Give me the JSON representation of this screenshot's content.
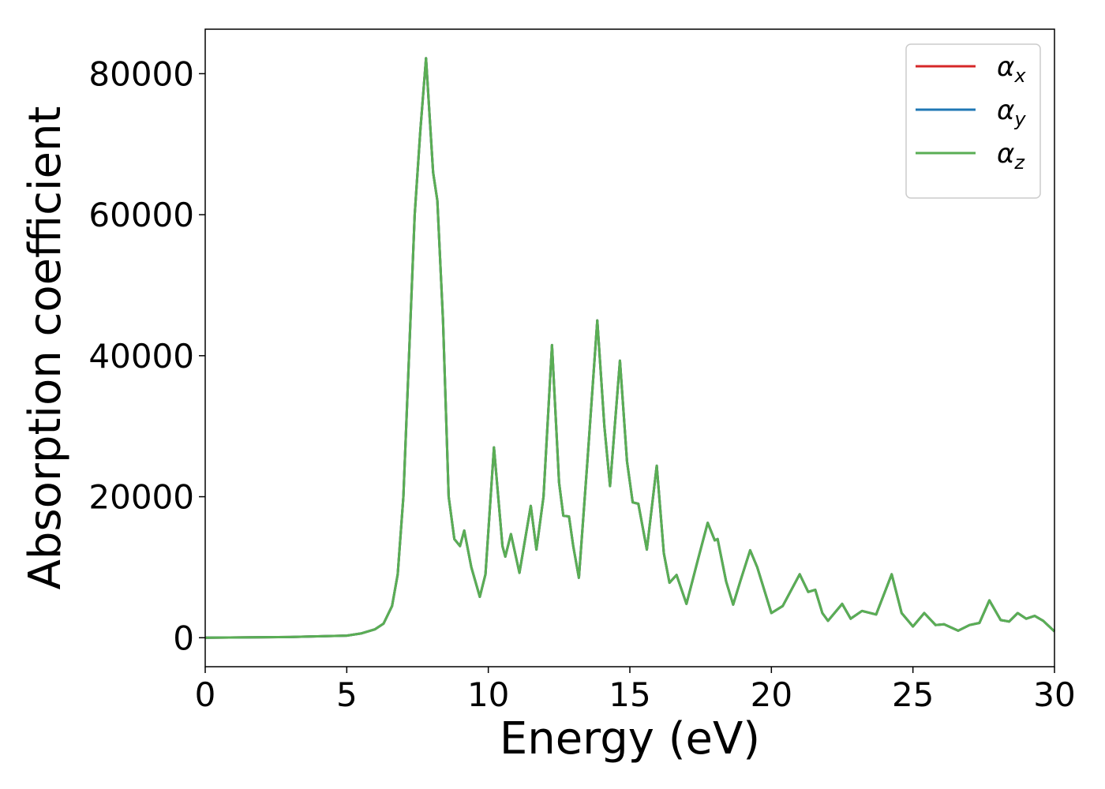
{
  "chart_data": {
    "type": "line",
    "xlabel": "Energy (eV)",
    "ylabel": "Absorption coefficient",
    "xlim": [
      0,
      30
    ],
    "xticks": [
      0,
      5,
      10,
      15,
      20,
      25,
      30
    ],
    "ylim": [
      -4110,
      86310
    ],
    "yticks": [
      0,
      20000,
      40000,
      60000,
      80000
    ],
    "legend": "upper right",
    "x": [
      0,
      3,
      5,
      5.5,
      6,
      6.3,
      6.6,
      6.8,
      7.0,
      7.2,
      7.4,
      7.6,
      7.8,
      8.05,
      8.2,
      8.4,
      8.6,
      8.8,
      9.0,
      9.15,
      9.4,
      9.7,
      9.9,
      10.2,
      10.5,
      10.6,
      10.8,
      11.1,
      11.5,
      11.7,
      11.95,
      12.25,
      12.5,
      12.65,
      12.85,
      13.0,
      13.2,
      13.5,
      13.85,
      14.1,
      14.3,
      14.65,
      14.9,
      15.1,
      15.3,
      15.6,
      15.95,
      16.2,
      16.4,
      16.65,
      17.0,
      17.4,
      17.75,
      18.0,
      18.1,
      18.4,
      18.65,
      18.9,
      19.25,
      19.5,
      20.0,
      20.4,
      21.0,
      21.3,
      21.55,
      21.8,
      22.0,
      22.5,
      22.8,
      23.2,
      23.7,
      24.25,
      24.6,
      25.0,
      25.4,
      25.8,
      26.1,
      26.6,
      27.0,
      27.35,
      27.7,
      28.1,
      28.4,
      28.7,
      29.0,
      29.3,
      29.6,
      30.0
    ],
    "series": [
      {
        "name": "αx",
        "color": "#d62728",
        "values": [
          0,
          100,
          300,
          600,
          1200,
          2000,
          4500,
          9000,
          20000,
          40000,
          60000,
          72000,
          82200,
          66000,
          62000,
          45000,
          20000,
          14000,
          13000,
          15200,
          10000,
          5800,
          9000,
          27000,
          13000,
          11500,
          14700,
          9200,
          18700,
          12500,
          20000,
          41500,
          22000,
          17300,
          17200,
          13000,
          8500,
          25000,
          45000,
          30000,
          21500,
          39300,
          25000,
          19200,
          19000,
          12500,
          24400,
          12000,
          7800,
          8900,
          4800,
          11000,
          16300,
          13800,
          14000,
          8000,
          4700,
          8000,
          12400,
          10000,
          3500,
          4500,
          9000,
          6500,
          6800,
          3500,
          2400,
          4800,
          2700,
          3800,
          3300,
          9000,
          3500,
          1600,
          3500,
          1800,
          1900,
          1000,
          1800,
          2100,
          5300,
          2500,
          2300,
          3500,
          2700,
          3100,
          2400,
          900
        ]
      },
      {
        "name": "αy",
        "color": "#1f77b4",
        "values": [
          0,
          100,
          300,
          600,
          1200,
          2000,
          4500,
          9000,
          20000,
          40000,
          60000,
          72000,
          82200,
          66000,
          62000,
          45000,
          20000,
          14000,
          13000,
          15200,
          10000,
          5800,
          9000,
          27000,
          13000,
          11500,
          14700,
          9200,
          18700,
          12500,
          20000,
          41500,
          22000,
          17300,
          17200,
          13000,
          8500,
          25000,
          45000,
          30000,
          21500,
          39300,
          25000,
          19200,
          19000,
          12500,
          24400,
          12000,
          7800,
          8900,
          4800,
          11000,
          16300,
          13800,
          14000,
          8000,
          4700,
          8000,
          12400,
          10000,
          3500,
          4500,
          9000,
          6500,
          6800,
          3500,
          2400,
          4800,
          2700,
          3800,
          3300,
          9000,
          3500,
          1600,
          3500,
          1800,
          1900,
          1000,
          1800,
          2100,
          5300,
          2500,
          2300,
          3500,
          2700,
          3100,
          2400,
          900
        ]
      },
      {
        "name": "αz",
        "color": "#5aae54",
        "values": [
          0,
          100,
          300,
          600,
          1200,
          2000,
          4500,
          9000,
          20000,
          40000,
          60000,
          72000,
          82200,
          66000,
          62000,
          45000,
          20000,
          14000,
          13000,
          15200,
          10000,
          5800,
          9000,
          27000,
          13000,
          11500,
          14700,
          9200,
          18700,
          12500,
          20000,
          41500,
          22000,
          17300,
          17200,
          13000,
          8500,
          25000,
          45000,
          30000,
          21500,
          39300,
          25000,
          19200,
          19000,
          12500,
          24400,
          12000,
          7800,
          8900,
          4800,
          11000,
          16300,
          13800,
          14000,
          8000,
          4700,
          8000,
          12400,
          10000,
          3500,
          4500,
          9000,
          6500,
          6800,
          3500,
          2400,
          4800,
          2700,
          3800,
          3300,
          9000,
          3500,
          1600,
          3500,
          1800,
          1900,
          1000,
          1800,
          2100,
          5300,
          2500,
          2300,
          3500,
          2700,
          3100,
          2400,
          900
        ]
      }
    ]
  }
}
